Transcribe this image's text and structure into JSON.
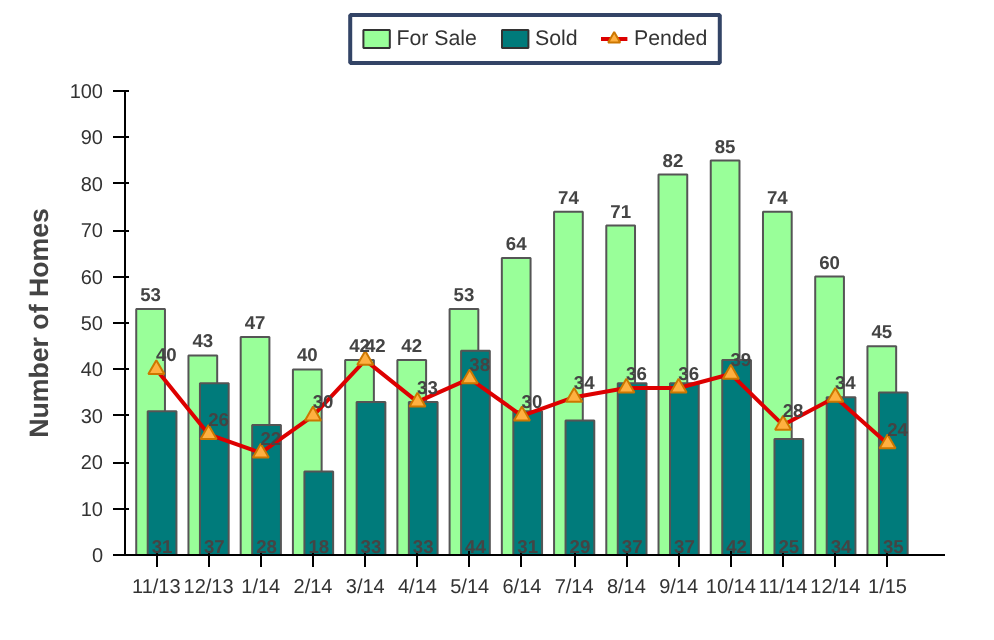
{
  "chart_data": {
    "type": "bar",
    "ylabel": "Number of Homes",
    "categories": [
      "11/13",
      "12/13",
      "1/14",
      "2/14",
      "3/14",
      "4/14",
      "5/14",
      "6/14",
      "7/14",
      "8/14",
      "9/14",
      "10/14",
      "11/14",
      "12/14",
      "1/15"
    ],
    "series": [
      {
        "name": "For Sale",
        "color": "#99ff99",
        "values": [
          53,
          43,
          47,
          40,
          42,
          42,
          53,
          64,
          74,
          71,
          82,
          85,
          74,
          60,
          45
        ]
      },
      {
        "name": "Sold",
        "color": "#007b7b",
        "values": [
          31,
          37,
          28,
          18,
          33,
          33,
          44,
          31,
          29,
          37,
          37,
          42,
          25,
          34,
          35
        ]
      },
      {
        "name": "Pended",
        "type": "line",
        "color": "#dd0000",
        "marker": "triangle",
        "values": [
          40,
          26,
          22,
          30,
          42,
          33,
          38,
          30,
          34,
          36,
          36,
          39,
          28,
          34,
          24
        ]
      }
    ],
    "ylim": [
      0,
      100
    ],
    "yticks": [
      0,
      10,
      20,
      30,
      40,
      50,
      60,
      70,
      80,
      90,
      100
    ],
    "grid": false,
    "legend": "top",
    "data_labels": true
  }
}
